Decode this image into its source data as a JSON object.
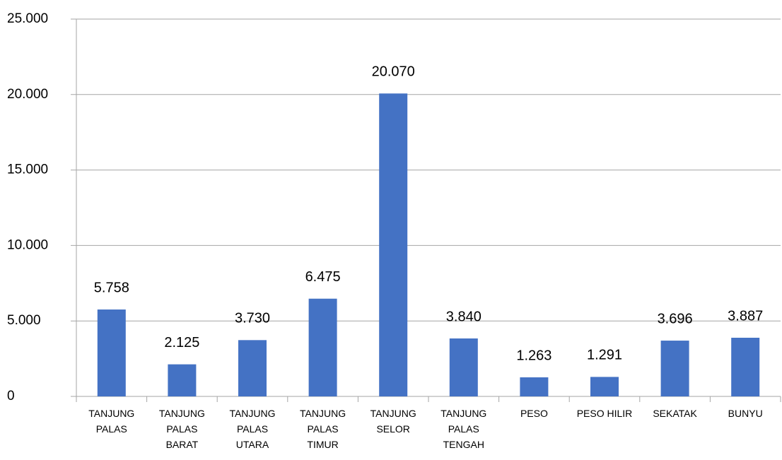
{
  "chart_data": {
    "type": "bar",
    "categories": [
      "TANJUNG PALAS",
      "TANJUNG PALAS BARAT",
      "TANJUNG PALAS UTARA",
      "TANJUNG PALAS TIMUR",
      "TANJUNG SELOR",
      "TANJUNG PALAS TENGAH",
      "PESO",
      "PESO HILIR",
      "SEKATAK",
      "BUNYU"
    ],
    "values": [
      5758,
      2125,
      3730,
      6475,
      20070,
      3840,
      1263,
      1291,
      3696,
      3887
    ],
    "value_labels": [
      "5.758",
      "2.125",
      "3.730",
      "6.475",
      "20.070",
      "3.840",
      "1.263",
      "1.291",
      "3.696",
      "3.887"
    ],
    "color": "#4472c4",
    "ylim": [
      0,
      25000
    ],
    "yticks": [
      0,
      {
        "value": 5000,
        "label": "5.000"
      },
      {
        "value": 10000,
        "label": "10.000"
      },
      {
        "value": 15000,
        "label": "15.000"
      },
      {
        "value": 20000,
        "label": "20.000"
      },
      {
        "value": 25000,
        "label": "25.000"
      }
    ],
    "grid": true
  }
}
